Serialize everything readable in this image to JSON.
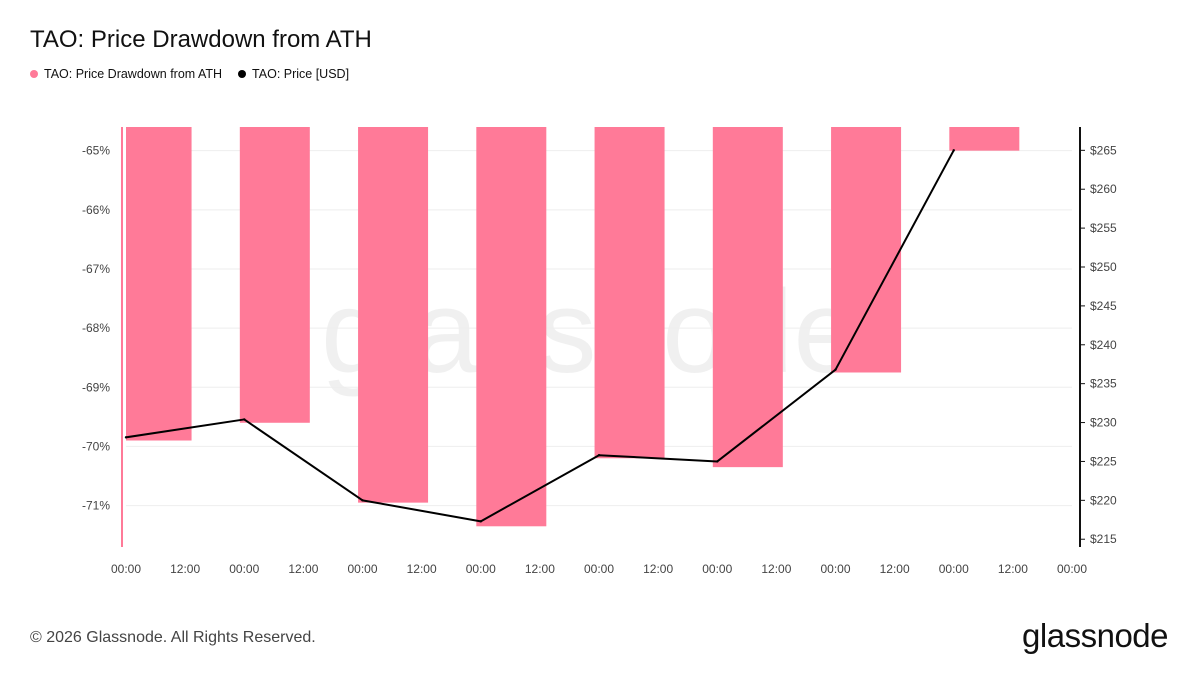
{
  "title": "TAO: Price Drawdown from ATH",
  "legend": [
    {
      "label": "TAO: Price Drawdown from ATH",
      "color": "#ff7a98"
    },
    {
      "label": "TAO: Price [USD]",
      "color": "#000000"
    }
  ],
  "footer": "© 2026 Glassnode. All Rights Reserved.",
  "brand": "glassnode",
  "watermark": "glassnode",
  "chart_data": {
    "type": "bar+line",
    "x_tick_labels": [
      "00:00",
      "12:00",
      "00:00",
      "12:00",
      "00:00",
      "12:00",
      "00:00",
      "12:00",
      "00:00",
      "12:00",
      "00:00",
      "12:00",
      "00:00",
      "12:00",
      "00:00",
      "12:00",
      "00:00"
    ],
    "series": [
      {
        "name": "TAO: Price Drawdown from ATH",
        "type": "bar",
        "axis": "left",
        "values": [
          -69.9,
          -69.6,
          -70.95,
          -71.35,
          -70.2,
          -70.35,
          -68.75,
          -65.0
        ]
      },
      {
        "name": "TAO: Price [USD]",
        "type": "line",
        "axis": "right",
        "values": [
          228.1,
          230.4,
          220.0,
          217.3,
          225.8,
          225.0,
          236.8,
          265.0
        ]
      }
    ],
    "left_axis": {
      "ticks": [
        -65,
        -66,
        -67,
        -68,
        -69,
        -70,
        -71
      ],
      "tick_labels": [
        "-65%",
        "-66%",
        "-67%",
        "-68%",
        "-69%",
        "-70%",
        "-71%"
      ],
      "range": [
        -71.7,
        -64.6
      ]
    },
    "right_axis": {
      "ticks": [
        215,
        220,
        225,
        230,
        235,
        240,
        245,
        250,
        255,
        260,
        265
      ],
      "tick_labels": [
        "$215",
        "$220",
        "$225",
        "$230",
        "$235",
        "$240",
        "$245",
        "$250",
        "$255",
        "$260",
        "$265"
      ],
      "range": [
        214,
        268
      ]
    },
    "grid": true,
    "legend_position": "top-left",
    "colors": {
      "bar": "#ff7a98",
      "line": "#000000",
      "grid": "#eeeeee"
    }
  }
}
